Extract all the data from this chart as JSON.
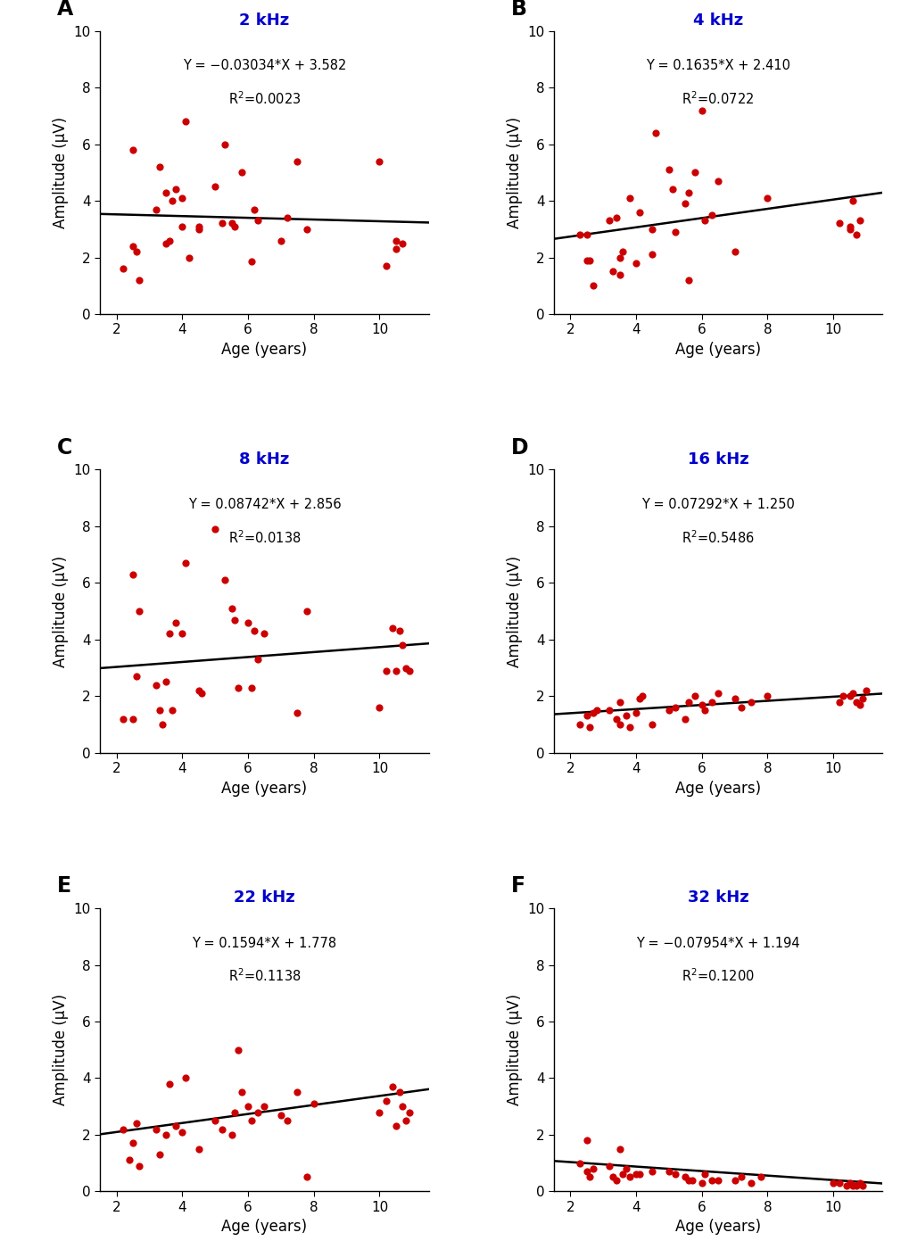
{
  "panels": [
    {
      "label": "A",
      "title": "2 kHz",
      "slope": -0.03034,
      "intercept": 3.582,
      "r2": "0.0023",
      "eq": "Y = −0.03034*X + 3.582",
      "scatter_x": [
        2.2,
        2.5,
        2.5,
        2.6,
        2.7,
        3.2,
        3.3,
        3.5,
        3.5,
        3.6,
        3.7,
        3.8,
        4.0,
        4.0,
        4.1,
        4.2,
        4.5,
        4.5,
        5.0,
        5.2,
        5.3,
        5.5,
        5.6,
        5.8,
        6.1,
        6.2,
        6.3,
        7.0,
        7.2,
        7.5,
        7.8,
        10.0,
        10.2,
        10.5,
        10.5,
        10.7
      ],
      "scatter_y": [
        1.6,
        5.8,
        2.4,
        2.2,
        1.2,
        3.7,
        5.2,
        2.5,
        4.3,
        2.6,
        4.0,
        4.4,
        4.1,
        3.1,
        6.8,
        2.0,
        3.1,
        3.0,
        4.5,
        3.2,
        6.0,
        3.2,
        3.1,
        5.0,
        1.85,
        3.7,
        3.3,
        2.6,
        3.4,
        5.4,
        3.0,
        5.4,
        1.7,
        2.6,
        2.3,
        2.5
      ]
    },
    {
      "label": "B",
      "title": "4 kHz",
      "slope": 0.1635,
      "intercept": 2.41,
      "r2": "0.0722",
      "eq": "Y = 0.1635*X + 2.410",
      "scatter_x": [
        2.3,
        2.5,
        2.5,
        2.6,
        2.7,
        3.2,
        3.3,
        3.4,
        3.5,
        3.5,
        3.6,
        3.8,
        4.0,
        4.1,
        4.5,
        4.5,
        4.6,
        5.0,
        5.1,
        5.2,
        5.5,
        5.6,
        5.6,
        5.8,
        6.0,
        6.1,
        6.3,
        6.5,
        7.0,
        8.0,
        10.2,
        10.5,
        10.5,
        10.6,
        10.7,
        10.8
      ],
      "scatter_y": [
        2.8,
        1.9,
        2.8,
        1.9,
        1.0,
        3.3,
        1.5,
        3.4,
        2.0,
        1.4,
        2.2,
        4.1,
        1.8,
        3.6,
        3.0,
        2.1,
        6.4,
        5.1,
        4.4,
        2.9,
        3.9,
        1.2,
        4.3,
        5.0,
        7.2,
        3.3,
        3.5,
        4.7,
        2.2,
        4.1,
        3.2,
        3.1,
        3.0,
        4.0,
        2.8,
        3.3
      ]
    },
    {
      "label": "C",
      "title": "8 kHz",
      "slope": 0.08742,
      "intercept": 2.856,
      "r2": "0.0138",
      "eq": "Y = 0.08742*X + 2.856",
      "scatter_x": [
        2.2,
        2.5,
        2.5,
        2.6,
        2.7,
        3.2,
        3.3,
        3.4,
        3.5,
        3.6,
        3.7,
        3.8,
        4.0,
        4.1,
        4.5,
        4.6,
        5.0,
        5.3,
        5.5,
        5.6,
        5.7,
        6.0,
        6.1,
        6.2,
        6.3,
        6.5,
        7.5,
        7.8,
        10.0,
        10.2,
        10.4,
        10.5,
        10.6,
        10.7,
        10.8,
        10.9
      ],
      "scatter_y": [
        1.2,
        6.3,
        1.2,
        2.7,
        5.0,
        2.4,
        1.5,
        1.0,
        2.5,
        4.2,
        1.5,
        4.6,
        4.2,
        6.7,
        2.2,
        2.1,
        7.9,
        6.1,
        5.1,
        4.7,
        2.3,
        4.6,
        2.3,
        4.3,
        3.3,
        4.2,
        1.4,
        5.0,
        1.6,
        2.9,
        4.4,
        2.9,
        4.3,
        3.8,
        3.0,
        2.9
      ]
    },
    {
      "label": "D",
      "title": "16 kHz",
      "slope": 0.07292,
      "intercept": 1.25,
      "r2": "0.5486",
      "eq": "Y = 0.07292*X + 1.250",
      "scatter_x": [
        2.3,
        2.5,
        2.6,
        2.7,
        2.8,
        3.2,
        3.4,
        3.5,
        3.5,
        3.7,
        3.8,
        4.0,
        4.1,
        4.2,
        4.5,
        5.0,
        5.2,
        5.5,
        5.6,
        5.8,
        6.0,
        6.1,
        6.3,
        6.5,
        7.0,
        7.2,
        7.5,
        8.0,
        10.2,
        10.3,
        10.5,
        10.6,
        10.7,
        10.8,
        10.9,
        11.0
      ],
      "scatter_y": [
        1.0,
        1.3,
        0.9,
        1.4,
        1.5,
        1.5,
        1.2,
        1.0,
        1.8,
        1.3,
        0.9,
        1.4,
        1.9,
        2.0,
        1.0,
        1.5,
        1.6,
        1.2,
        1.8,
        2.0,
        1.7,
        1.5,
        1.8,
        2.1,
        1.9,
        1.6,
        1.8,
        2.0,
        1.8,
        2.0,
        2.0,
        2.1,
        1.8,
        1.7,
        1.9,
        2.2
      ]
    },
    {
      "label": "E",
      "title": "22 kHz",
      "slope": 0.1594,
      "intercept": 1.778,
      "r2": "0.1138",
      "eq": "Y = 0.1594*X + 1.778",
      "scatter_x": [
        2.2,
        2.4,
        2.5,
        2.6,
        2.7,
        3.2,
        3.3,
        3.5,
        3.6,
        3.8,
        4.0,
        4.1,
        4.5,
        5.0,
        5.2,
        5.5,
        5.6,
        5.7,
        5.8,
        6.0,
        6.1,
        6.3,
        6.5,
        7.0,
        7.2,
        7.5,
        7.8,
        8.0,
        10.0,
        10.2,
        10.4,
        10.5,
        10.6,
        10.7,
        10.8,
        10.9
      ],
      "scatter_y": [
        2.2,
        1.1,
        1.7,
        2.4,
        0.9,
        2.2,
        1.3,
        2.0,
        3.8,
        2.3,
        2.1,
        4.0,
        1.5,
        2.5,
        2.2,
        2.0,
        2.8,
        5.0,
        3.5,
        3.0,
        2.5,
        2.8,
        3.0,
        2.7,
        2.5,
        3.5,
        0.5,
        3.1,
        2.8,
        3.2,
        3.7,
        2.3,
        3.5,
        3.0,
        2.5,
        2.8
      ]
    },
    {
      "label": "F",
      "title": "32 kHz",
      "slope": -0.07954,
      "intercept": 1.194,
      "r2": "0.1200",
      "eq": "Y = −0.07954*X + 1.194",
      "scatter_x": [
        2.3,
        2.5,
        2.5,
        2.6,
        2.7,
        3.2,
        3.3,
        3.4,
        3.5,
        3.6,
        3.7,
        3.8,
        4.0,
        4.1,
        4.5,
        5.0,
        5.2,
        5.5,
        5.6,
        5.7,
        6.0,
        6.1,
        6.3,
        6.5,
        7.0,
        7.2,
        7.5,
        7.8,
        10.0,
        10.2,
        10.4,
        10.5,
        10.6,
        10.7,
        10.8,
        10.9
      ],
      "scatter_y": [
        1.0,
        1.8,
        0.7,
        0.5,
        0.8,
        0.9,
        0.5,
        0.4,
        1.5,
        0.6,
        0.8,
        0.5,
        0.6,
        0.6,
        0.7,
        0.7,
        0.6,
        0.5,
        0.4,
        0.4,
        0.3,
        0.6,
        0.4,
        0.4,
        0.4,
        0.5,
        0.3,
        0.5,
        0.3,
        0.3,
        0.2,
        0.3,
        0.2,
        0.2,
        0.3,
        0.2
      ]
    }
  ],
  "xlim": [
    1.5,
    11.5
  ],
  "ylim": [
    0,
    10
  ],
  "xticks": [
    2,
    4,
    6,
    8,
    10
  ],
  "yticks": [
    0,
    2,
    4,
    6,
    8,
    10
  ],
  "xlabel": "Age (years)",
  "ylabel": "Amplitude (μV)",
  "dot_color": "#cc0000",
  "line_color": "#000000",
  "title_color": "#0000cc",
  "label_color": "#000000",
  "dot_size": 35,
  "line_width": 1.8,
  "x_fit_start": 1.5,
  "x_fit_end": 11.5,
  "fig_width": 10.2,
  "fig_height": 13.91,
  "dpi": 100
}
